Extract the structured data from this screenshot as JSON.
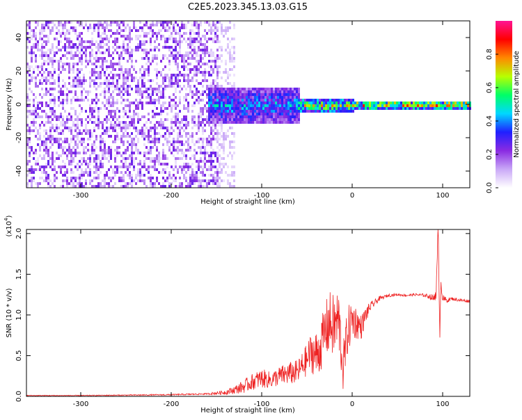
{
  "title": "C2E5.2023.345.13.03.G15",
  "chart_data": [
    {
      "type": "heatmap",
      "title": "C2E5.2023.345.13.03.G15",
      "xlabel": "Height of straight line (km)",
      "ylabel": "Frequency (Hz)",
      "xlim": [
        -360,
        130
      ],
      "ylim": [
        -50,
        50
      ],
      "x_ticks": [
        -300,
        -200,
        -100,
        0,
        100
      ],
      "x_tick_labels": [
        "-300",
        "-200",
        "-100",
        "0",
        "100"
      ],
      "y_ticks": [
        -40,
        -20,
        0,
        20,
        40
      ],
      "y_tick_labels": [
        "-40",
        "-20",
        "0",
        "20",
        "40"
      ],
      "grid": false,
      "colorbar": {
        "label": "Normalized spectral amplitude",
        "range": [
          0,
          1
        ],
        "ticks": [
          0.0,
          0.2,
          0.4,
          0.6,
          0.8
        ],
        "tick_labels": [
          "0.0",
          "0.2",
          "0.4",
          "0.6",
          "0.8"
        ],
        "colormap": [
          "#ffffff",
          "#c9a8f7",
          "#8a2be2",
          "#2020ff",
          "#00d8ff",
          "#00ff66",
          "#b8ff00",
          "#ff8800",
          "#ff0000",
          "#ff1493"
        ]
      },
      "regions": [
        {
          "x_range": [
            -360,
            -150
          ],
          "freq_range": [
            -50,
            50
          ],
          "amplitude": 0.12,
          "pattern": "broadband noise"
        },
        {
          "x_range": [
            -150,
            -130
          ],
          "freq_range": [
            -50,
            50
          ],
          "amplitude": 0.05,
          "pattern": "sparse noise"
        },
        {
          "x_range": [
            -160,
            -60
          ],
          "freq_range": [
            -10,
            10
          ],
          "amplitude": 0.3,
          "pattern": "narrowing band"
        },
        {
          "x_range": [
            -60,
            0
          ],
          "freq_range": [
            -4,
            4
          ],
          "amplitude": 0.45,
          "pattern": "narrow band"
        },
        {
          "x_range": [
            0,
            130
          ],
          "freq_range": [
            -2,
            3
          ],
          "amplitude": 0.55,
          "pattern": "stable narrow line"
        }
      ]
    },
    {
      "type": "line",
      "xlabel": "Height of straight line (km)",
      "ylabel": "SNR (10 * v/v)",
      "y_multiplier": "(x10",
      "y_multiplier_exp": "4",
      "y_multiplier_close": ")",
      "xlim": [
        -360,
        130
      ],
      "ylim": [
        0,
        2.05
      ],
      "x_ticks": [
        -300,
        -200,
        -100,
        0,
        100
      ],
      "x_tick_labels": [
        "-300",
        "-200",
        "-100",
        "0",
        "100"
      ],
      "y_ticks": [
        0,
        0.5,
        1.0,
        1.5,
        2.0
      ],
      "y_tick_labels": [
        "0.0",
        "0.5",
        "1.0",
        "1.5",
        "2.0"
      ],
      "grid": false,
      "series": [
        {
          "color": "#ee2222",
          "x": [
            -360,
            -300,
            -250,
            -200,
            -160,
            -140,
            -130,
            -120,
            -110,
            -100,
            -90,
            -80,
            -70,
            -60,
            -50,
            -45,
            -40,
            -35,
            -30,
            -25,
            -20,
            -15,
            -10,
            -5,
            0,
            5,
            10,
            15,
            20,
            25,
            30,
            35,
            40,
            50,
            60,
            70,
            80,
            85,
            90,
            93,
            95,
            97,
            98,
            100,
            105,
            110,
            120,
            130
          ],
          "y": [
            0.01,
            0.01,
            0.015,
            0.02,
            0.03,
            0.05,
            0.08,
            0.12,
            0.18,
            0.22,
            0.2,
            0.25,
            0.28,
            0.3,
            0.45,
            0.55,
            0.5,
            0.6,
            0.8,
            0.9,
            0.85,
            0.95,
            0.35,
            0.8,
            0.95,
            0.9,
            0.85,
            1.0,
            1.1,
            1.15,
            1.2,
            1.22,
            1.24,
            1.25,
            1.24,
            1.25,
            1.24,
            1.23,
            1.2,
            1.3,
            2.05,
            0.75,
            1.45,
            1.2,
            1.18,
            1.2,
            1.18,
            1.17
          ],
          "noise": [
            0.005,
            0.005,
            0.006,
            0.008,
            0.01,
            0.03,
            0.05,
            0.08,
            0.1,
            0.12,
            0.1,
            0.12,
            0.14,
            0.15,
            0.2,
            0.25,
            0.3,
            0.3,
            0.35,
            0.4,
            0.4,
            0.4,
            0.3,
            0.3,
            0.25,
            0.2,
            0.15,
            0.1,
            0.06,
            0.04,
            0.03,
            0.02,
            0.02,
            0.015,
            0.015,
            0.015,
            0.02,
            0.03,
            0.05,
            0.1,
            0.1,
            0.1,
            0.1,
            0.05,
            0.03,
            0.02,
            0.02,
            0.02
          ]
        }
      ]
    }
  ]
}
